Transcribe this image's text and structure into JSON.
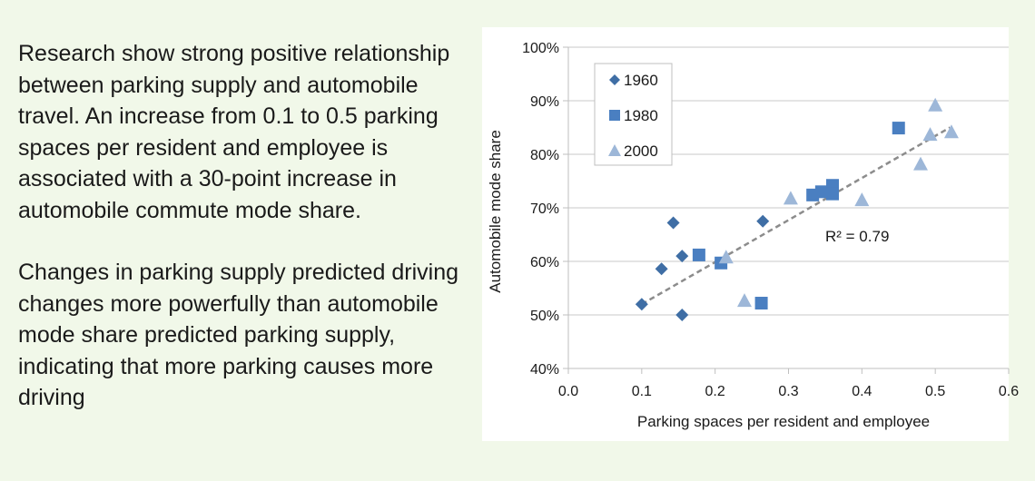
{
  "text": {
    "paragraph1": "Research show strong positive relationship between parking supply and automobile travel. An increase from 0.1 to 0.5 parking spaces per resident and employee is associated with a 30-point increase in automobile commute mode share.",
    "paragraph2": "Changes in parking supply predicted driving changes more powerfully than automobile mode share predicted parking supply, indicating that more parking causes more driving"
  },
  "colors": {
    "page_background": "#f1f8e9",
    "series_1960": "#3f6ea5",
    "series_1980": "#4a7fc1",
    "series_2000": "#9db7d8",
    "trendline": "#8c8c8c"
  },
  "chart_data": {
    "type": "scatter",
    "title": "",
    "xlabel": "Parking spaces per resident and employee",
    "ylabel": "Automobile mode share",
    "xlim": [
      0,
      0.6
    ],
    "ylim": [
      40,
      100
    ],
    "x_ticks": [
      "0.0",
      "0.1",
      "0.2",
      "0.3",
      "0.4",
      "0.5",
      "0.6"
    ],
    "y_ticks": [
      "40%",
      "50%",
      "60%",
      "70%",
      "80%",
      "90%",
      "100%"
    ],
    "grid": "horizontal",
    "legend_position": "top-left",
    "annotation": "R² = 0.79",
    "trendline": {
      "from": [
        0.1,
        52
      ],
      "to": [
        0.52,
        85
      ]
    },
    "series": [
      {
        "name": "1960",
        "marker": "diamond",
        "points": [
          [
            0.1,
            52
          ],
          [
            0.127,
            58.6
          ],
          [
            0.143,
            67.2
          ],
          [
            0.155,
            61
          ],
          [
            0.155,
            50
          ],
          [
            0.265,
            67.5
          ]
        ]
      },
      {
        "name": "1980",
        "marker": "square",
        "points": [
          [
            0.178,
            61.2
          ],
          [
            0.208,
            59.7
          ],
          [
            0.263,
            52.2
          ],
          [
            0.333,
            72.4
          ],
          [
            0.345,
            73
          ],
          [
            0.36,
            74.2
          ],
          [
            0.36,
            72.6
          ],
          [
            0.45,
            84.9
          ]
        ]
      },
      {
        "name": "2000",
        "marker": "triangle",
        "points": [
          [
            0.215,
            60.8
          ],
          [
            0.24,
            52.7
          ],
          [
            0.303,
            71.8
          ],
          [
            0.4,
            71.5
          ],
          [
            0.48,
            78.2
          ],
          [
            0.493,
            83.7
          ],
          [
            0.5,
            89.2
          ],
          [
            0.522,
            84.2
          ]
        ]
      }
    ]
  }
}
